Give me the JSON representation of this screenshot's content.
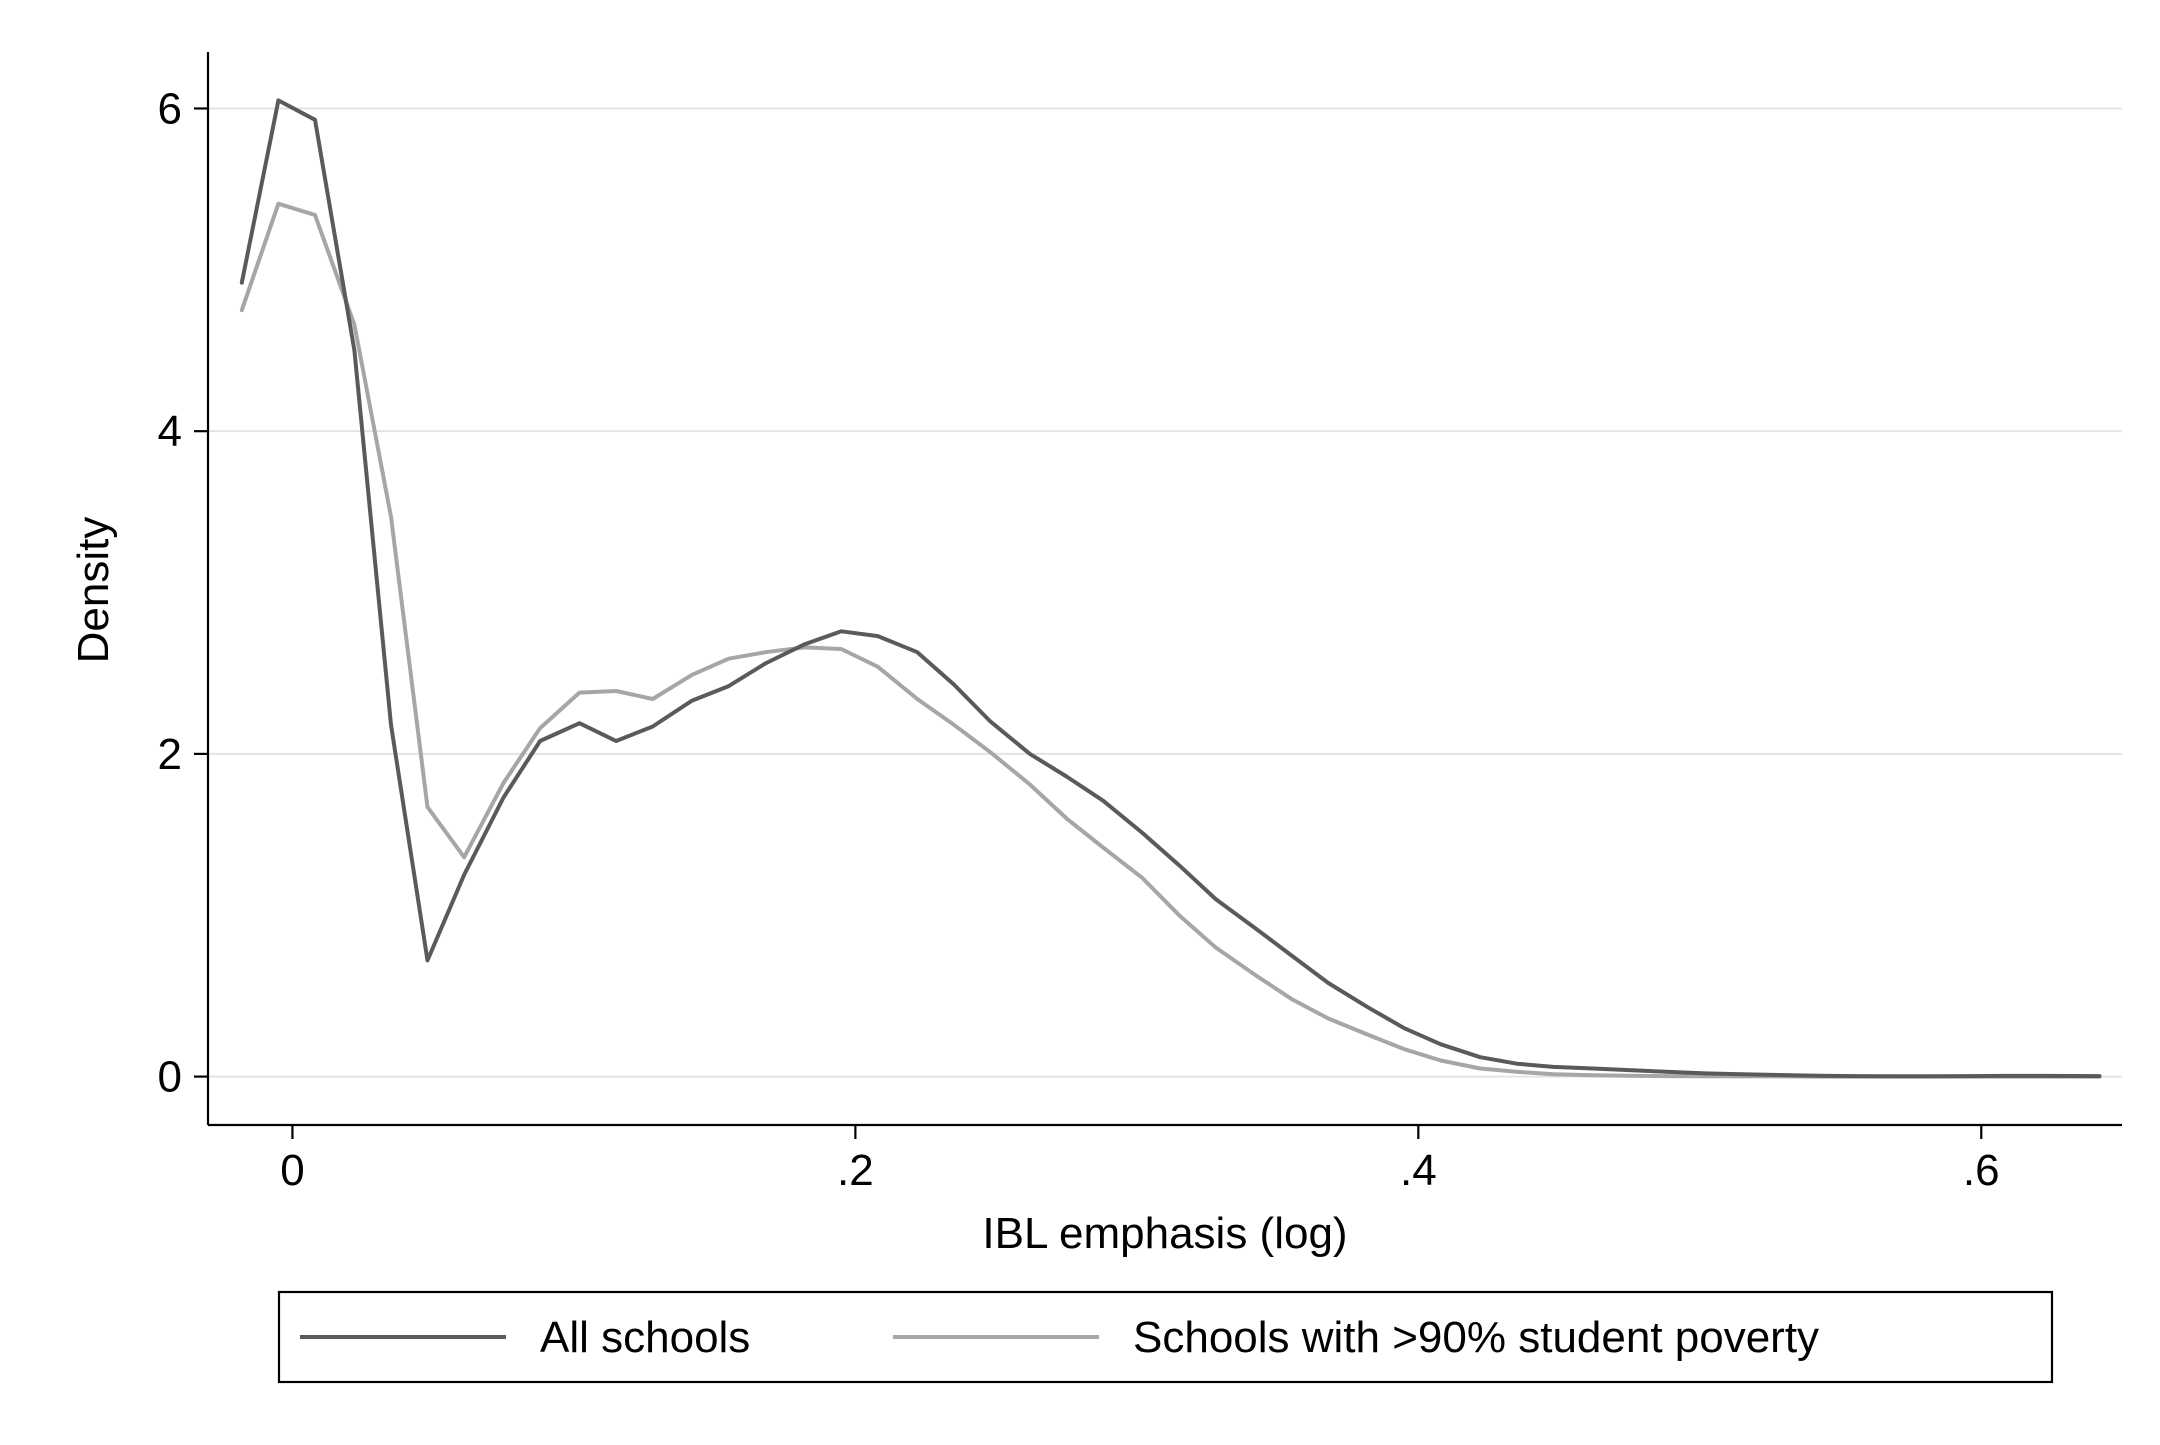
{
  "chart_data": {
    "type": "line",
    "title": "",
    "xlabel": "IBL emphasis (log)",
    "ylabel": "Density",
    "xlim": [
      -0.03,
      0.65
    ],
    "ylim": [
      -0.3,
      6.35
    ],
    "x_ticks": [
      {
        "value": 0,
        "label": "0"
      },
      {
        "value": 0.2,
        "label": ".2"
      },
      {
        "value": 0.4,
        "label": ".4"
      },
      {
        "value": 0.6,
        "label": ".6"
      }
    ],
    "y_ticks": [
      {
        "value": 0,
        "label": "0"
      },
      {
        "value": 2,
        "label": "2"
      },
      {
        "value": 4,
        "label": "4"
      },
      {
        "value": 6,
        "label": "6"
      }
    ],
    "grid": "horizontal",
    "legend_position": "bottom",
    "series": [
      {
        "name": "All schools",
        "color": "#5a5a5a",
        "x": [
          -0.018,
          -0.005,
          0.008,
          0.022,
          0.035,
          0.048,
          0.061,
          0.075,
          0.088,
          0.102,
          0.115,
          0.128,
          0.142,
          0.155,
          0.168,
          0.182,
          0.195,
          0.208,
          0.222,
          0.235,
          0.248,
          0.262,
          0.275,
          0.288,
          0.302,
          0.315,
          0.328,
          0.342,
          0.355,
          0.368,
          0.382,
          0.395,
          0.408,
          0.422,
          0.435,
          0.448,
          0.462,
          0.475,
          0.488,
          0.502,
          0.515,
          0.528,
          0.542,
          0.555,
          0.568,
          0.582,
          0.595,
          0.608,
          0.622,
          0.642
        ],
        "y": [
          4.92,
          6.05,
          5.93,
          4.5,
          2.18,
          0.72,
          1.25,
          1.73,
          2.08,
          2.19,
          2.08,
          2.17,
          2.33,
          2.42,
          2.56,
          2.68,
          2.76,
          2.73,
          2.63,
          2.43,
          2.2,
          2.0,
          1.86,
          1.71,
          1.51,
          1.31,
          1.1,
          0.92,
          0.75,
          0.58,
          0.43,
          0.3,
          0.2,
          0.12,
          0.08,
          0.06,
          0.05,
          0.04,
          0.03,
          0.02,
          0.015,
          0.01,
          0.005,
          0.003,
          0.002,
          0.002,
          0.003,
          0.004,
          0.004,
          0.003
        ]
      },
      {
        "name": "Schools with >90% student poverty",
        "color": "#a6a6a6",
        "x": [
          -0.018,
          -0.005,
          0.008,
          0.022,
          0.035,
          0.048,
          0.061,
          0.075,
          0.088,
          0.102,
          0.115,
          0.128,
          0.142,
          0.155,
          0.168,
          0.182,
          0.195,
          0.208,
          0.222,
          0.235,
          0.248,
          0.262,
          0.275,
          0.288,
          0.302,
          0.315,
          0.328,
          0.342,
          0.355,
          0.368,
          0.382,
          0.395,
          0.408,
          0.422,
          0.435,
          0.448,
          0.462,
          0.475,
          0.488,
          0.502,
          0.515,
          0.528,
          0.542,
          0.555,
          0.568,
          0.582,
          0.595,
          0.608,
          0.622,
          0.642
        ],
        "y": [
          4.75,
          5.41,
          5.34,
          4.66,
          3.47,
          1.67,
          1.36,
          1.82,
          2.16,
          2.38,
          2.39,
          2.34,
          2.49,
          2.59,
          2.63,
          2.66,
          2.65,
          2.54,
          2.34,
          2.18,
          2.01,
          1.81,
          1.6,
          1.42,
          1.23,
          1.0,
          0.8,
          0.63,
          0.48,
          0.36,
          0.26,
          0.17,
          0.1,
          0.05,
          0.03,
          0.015,
          0.008,
          0.005,
          0.003,
          0.002,
          0.001,
          0.001,
          0.0,
          0.0,
          0.0,
          0.0,
          0.0,
          0.0,
          0.0,
          0.0
        ]
      }
    ]
  }
}
